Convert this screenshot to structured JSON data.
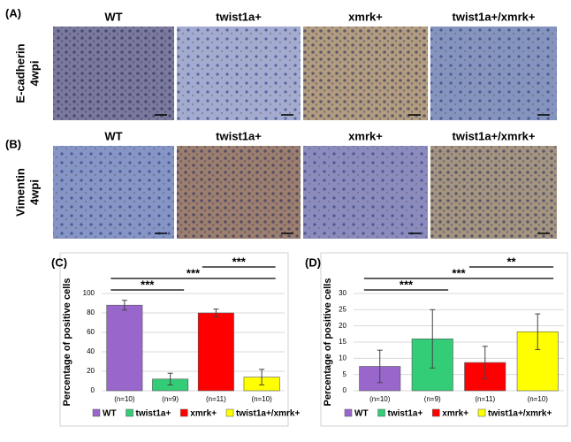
{
  "panels": [
    {
      "label": "(A)",
      "row_label": [
        "E-cadherin",
        "4wpi"
      ],
      "columns": [
        "WT",
        "twist1a+",
        "xmrk+",
        "twist1a+/xmrk+"
      ]
    },
    {
      "label": "(B)",
      "row_label": [
        "Vimentin",
        "4wpi"
      ],
      "columns": [
        "WT",
        "twist1a+",
        "xmrk+",
        "twist1a+/xmrk+"
      ]
    }
  ],
  "chart_data": [
    {
      "type": "bar",
      "panel_label": "(C)",
      "y_label": "Percentage of positive cells",
      "categories": [
        "(n=10)",
        "(n=9)",
        "(n=11)",
        "(n=10)"
      ],
      "values": [
        88,
        12,
        80,
        14
      ],
      "errors": [
        5,
        6,
        4,
        8
      ],
      "colors": [
        "#9966cc",
        "#33cc77",
        "#ff0000",
        "#ffff00"
      ],
      "legend": [
        "WT",
        "twist1a+",
        "xmrk+",
        "twist1a+/xmrk+"
      ],
      "ylim": [
        0,
        100
      ],
      "yticks": [
        0,
        20,
        40,
        60,
        80,
        100
      ],
      "grid": true,
      "annotations": [
        {
          "text": "***",
          "between": [
            0,
            1
          ]
        },
        {
          "text": "***",
          "between": [
            0,
            3
          ]
        },
        {
          "text": "***",
          "between": [
            2,
            3
          ]
        }
      ]
    },
    {
      "type": "bar",
      "panel_label": "(D)",
      "y_label": "Percentage of positive cells",
      "categories": [
        "(n=10)",
        "(n=9)",
        "(n=11)",
        "(n=10)"
      ],
      "values": [
        7.5,
        16,
        8.7,
        18.2
      ],
      "errors": [
        5,
        9,
        5,
        5.5
      ],
      "colors": [
        "#9966cc",
        "#33cc77",
        "#ff0000",
        "#ffff00"
      ],
      "legend": [
        "WT",
        "twist1a+",
        "xmrk+",
        "twist1a+/xmrk+"
      ],
      "ylim": [
        0,
        30
      ],
      "yticks": [
        0,
        5,
        10,
        15,
        20,
        25,
        30
      ],
      "grid": true,
      "annotations": [
        {
          "text": "***",
          "between": [
            0,
            1
          ]
        },
        {
          "text": "***",
          "between": [
            0,
            3
          ]
        },
        {
          "text": "**",
          "between": [
            2,
            3
          ]
        }
      ]
    }
  ]
}
